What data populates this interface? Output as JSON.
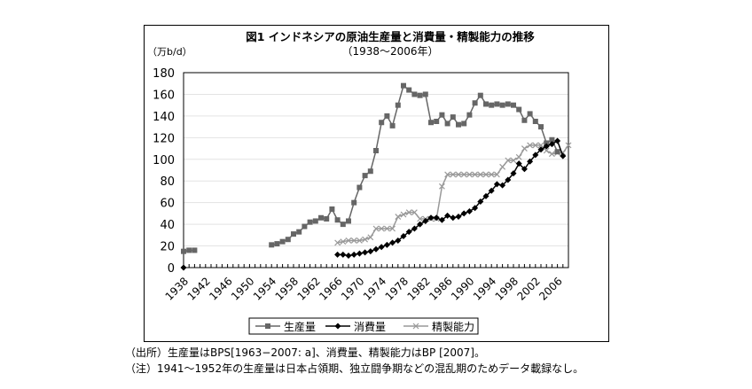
{
  "chart_data": {
    "type": "line",
    "title": "図1 インドネシアの原油生産量と消費量・精製能力の推移",
    "subtitle": "（1938～2006年）",
    "ylabel": "（万b/d）",
    "ylim": [
      0,
      180
    ],
    "yticks": [
      0,
      20,
      40,
      60,
      80,
      100,
      120,
      140,
      160,
      180
    ],
    "xlim": [
      1938,
      2008
    ],
    "xticks": [
      1938,
      1942,
      1946,
      1950,
      1954,
      1958,
      1962,
      1966,
      1970,
      1974,
      1978,
      1982,
      1986,
      1990,
      1994,
      1998,
      2002,
      2006
    ],
    "grid": true,
    "legend": "bottom",
    "series": [
      {
        "name": "生産量",
        "color": "#666666",
        "marker": "square",
        "segments": [
          {
            "start": 1938,
            "values": [
              15,
              16,
              16
            ]
          },
          {
            "start": 1954,
            "values": [
              21,
              22,
              24,
              26,
              31,
              33,
              38,
              42,
              43,
              46,
              45,
              54,
              44,
              40,
              43,
              60,
              74,
              85,
              89,
              108,
              134,
              140,
              131,
              150,
              168,
              164,
              160,
              159,
              160,
              134,
              135,
              141,
              133,
              139,
              132,
              133,
              141,
              152,
              159,
              151,
              150,
              151,
              150,
              151,
              150,
              146,
              136,
              142,
              135,
              130,
              115,
              118,
              107
            ]
          }
        ]
      },
      {
        "name": "消費量",
        "color": "#000000",
        "marker": "diamond",
        "segments": [
          {
            "start": 1938,
            "values": [
              0
            ]
          },
          {
            "start": 1966,
            "values": [
              12,
              12,
              11,
              12,
              13,
              14,
              15,
              17,
              19,
              21,
              23,
              25,
              29,
              33,
              36,
              40,
              43,
              46,
              46,
              44,
              48,
              46,
              47,
              50,
              52,
              55,
              61,
              66,
              71,
              77,
              76,
              81,
              87,
              96,
              91,
              98,
              104,
              109,
              112,
              114,
              117,
              103
            ]
          }
        ]
      },
      {
        "name": "精製能力",
        "color": "#999999",
        "marker": "x",
        "segments": [
          {
            "start": 1966,
            "values": [
              23,
              24,
              25,
              25,
              25,
              26,
              28,
              36,
              36,
              36,
              36,
              47,
              49,
              51,
              51,
              45,
              45,
              45,
              45,
              75,
              86,
              86,
              86,
              86,
              86,
              86,
              86,
              86,
              86,
              86,
              93,
              99,
              99,
              102,
              110,
              113,
              113,
              113,
              108,
              105,
              106,
              106,
              113
            ]
          }
        ]
      }
    ]
  },
  "notes": [
    "（出所）生産量はBPS[1963−2007: a]、消費量、精製能力はBP [2007]。",
    "（注）1941～1952年の生産量は日本占領期、独立闘争期などの混乱期のためデータ載録なし。"
  ]
}
